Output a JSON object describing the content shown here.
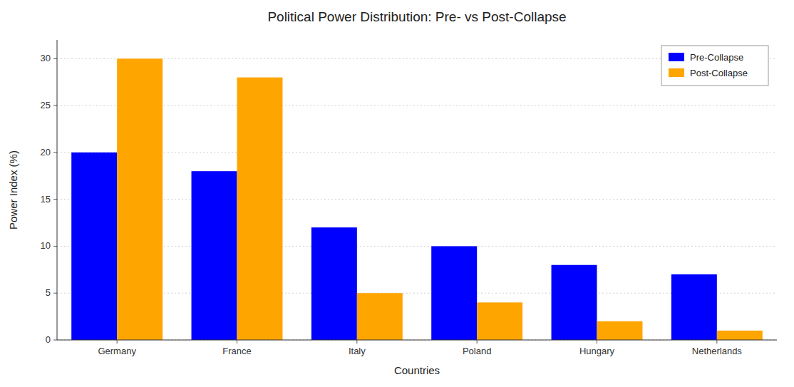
{
  "chart_data": {
    "type": "bar",
    "title": "Political Power Distribution: Pre- vs Post-Collapse",
    "xlabel": "Countries",
    "ylabel": "Power Index (%)",
    "categories": [
      "Germany",
      "France",
      "Italy",
      "Poland",
      "Hungary",
      "Netherlands"
    ],
    "series": [
      {
        "name": "Pre-Collapse",
        "color": "#0000ff",
        "values": [
          20,
          18,
          12,
          10,
          8,
          7
        ]
      },
      {
        "name": "Post-Collapse",
        "color": "#ffa500",
        "values": [
          30,
          28,
          5,
          4,
          2,
          1
        ]
      }
    ],
    "ylim": [
      0,
      32
    ],
    "yticks": [
      0,
      5,
      10,
      15,
      20,
      25,
      30
    ],
    "grid": true,
    "legend": "upper right"
  }
}
